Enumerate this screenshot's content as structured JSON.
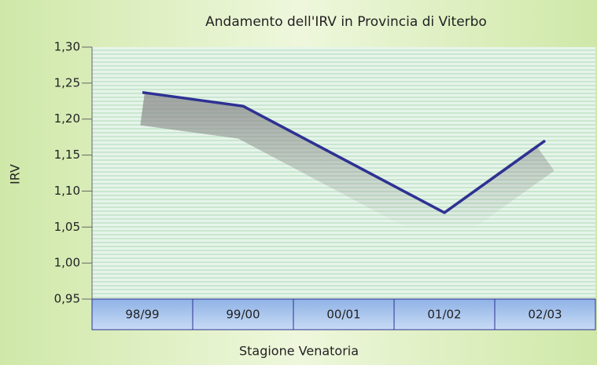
{
  "chart_data": {
    "type": "line",
    "title": "Andamento dell'IRV in Provincia di Viterbo",
    "x_label": "Stagione Venatoria",
    "y_label": "IRV",
    "categories": [
      "98/99",
      "99/00",
      "00/01",
      "01/02",
      "02/03"
    ],
    "series": [
      {
        "name": "IRV",
        "color": "#2e3192",
        "values": [
          1.237,
          1.218,
          1.144,
          1.07,
          1.17
        ]
      }
    ],
    "ylim": [
      0.95,
      1.3
    ],
    "yticks": [
      {
        "value": 0.95,
        "label": "0,95"
      },
      {
        "value": 1.0,
        "label": "1,00"
      },
      {
        "value": 1.05,
        "label": "1,05"
      },
      {
        "value": 1.1,
        "label": "1,10"
      },
      {
        "value": 1.15,
        "label": "1,15"
      },
      {
        "value": 1.2,
        "label": "1,20"
      },
      {
        "value": 1.25,
        "label": "1,25"
      },
      {
        "value": 1.3,
        "label": "1,30"
      }
    ],
    "grid": true
  }
}
